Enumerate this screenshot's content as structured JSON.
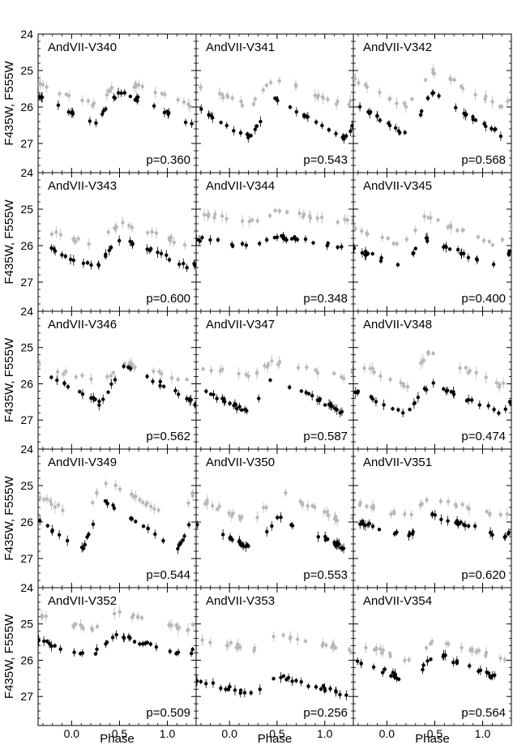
{
  "figure": {
    "ylabel": "F435W, F555W",
    "xlabel": "Phase",
    "colors": {
      "f555w": "#000000",
      "f435w": "#b8b8b8",
      "frame": "#000000"
    }
  },
  "chart_data": {
    "type": "scatter",
    "xlim": [
      -0.35,
      1.3
    ],
    "ylim_inverted": [
      27.8,
      24.0
    ],
    "yticks": [
      24,
      25,
      26,
      27
    ],
    "xticks": [
      "0.0",
      "0.5",
      "1.0"
    ],
    "grid": false,
    "series_note": "Light curves; black filled points = F555W, grey points = F435W",
    "panels": [
      {
        "name": "AndVII-V340",
        "period_label": "p=0.360",
        "period": 0.36,
        "f555w_mean": 26.0,
        "f555w_amp": 0.9,
        "f555w_max_phase": 0.5,
        "f435w_mean": 25.6,
        "f435w_amp": 0.7
      },
      {
        "name": "AndVII-V341",
        "period_label": "p=0.543",
        "period": 0.543,
        "f555w_mean": 26.3,
        "f555w_amp": 1.1,
        "f555w_max_phase": 0.47,
        "f435w_mean": 25.6,
        "f435w_amp": 0.8
      },
      {
        "name": "AndVII-V342",
        "period_label": "p=0.568",
        "period": 0.568,
        "f555w_mean": 26.2,
        "f555w_amp": 1.2,
        "f555w_max_phase": 0.47,
        "f435w_mean": 25.5,
        "f435w_amp": 1.0
      },
      {
        "name": "AndVII-V343",
        "period_label": "p=0.600",
        "period": 0.6,
        "f555w_mean": 26.2,
        "f555w_amp": 0.8,
        "f555w_max_phase": 0.5,
        "f435w_mean": 25.7,
        "f435w_amp": 0.6
      },
      {
        "name": "AndVII-V344",
        "period_label": "p=0.348",
        "period": 0.348,
        "f555w_mean": 25.9,
        "f555w_amp": 0.3,
        "f555w_max_phase": 0.5,
        "f435w_mean": 25.2,
        "f435w_amp": 0.3
      },
      {
        "name": "AndVII-V345",
        "period_label": "p=0.400",
        "period": 0.4,
        "f555w_mean": 26.2,
        "f555w_amp": 0.8,
        "f555w_max_phase": 0.4,
        "f435w_mean": 25.6,
        "f435w_amp": 0.8
      },
      {
        "name": "AndVII-V346",
        "period_label": "p=0.562",
        "period": 0.562,
        "f555w_mean": 26.0,
        "f555w_amp": 1.1,
        "f555w_max_phase": 0.55,
        "f435w_mean": 25.7,
        "f435w_amp": 0.5
      },
      {
        "name": "AndVII-V347",
        "period_label": "p=0.587",
        "period": 0.587,
        "f555w_mean": 26.3,
        "f555w_amp": 1.0,
        "f555w_max_phase": 0.45,
        "f435w_mean": 25.6,
        "f435w_amp": 0.4
      },
      {
        "name": "AndVII-V348",
        "period_label": "p=0.474",
        "period": 0.474,
        "f555w_mean": 26.4,
        "f555w_amp": 0.8,
        "f555w_max_phase": 0.45,
        "f435w_mean": 25.6,
        "f435w_amp": 1.0
      },
      {
        "name": "AndVII-V349",
        "period_label": "p=0.544",
        "period": 0.544,
        "f555w_mean": 26.1,
        "f555w_amp": 1.4,
        "f555w_max_phase": 0.35,
        "f435w_mean": 25.4,
        "f435w_amp": 1.0
      },
      {
        "name": "AndVII-V350",
        "period_label": "p=0.553",
        "period": 0.553,
        "f555w_mean": 26.3,
        "f555w_amp": 0.9,
        "f555w_max_phase": 0.5,
        "f435w_mean": 25.6,
        "f435w_amp": 0.9
      },
      {
        "name": "AndVII-V351",
        "period_label": "p=0.620",
        "period": 0.62,
        "f555w_mean": 26.1,
        "f555w_amp": 0.6,
        "f555w_max_phase": 0.47,
        "f435w_mean": 25.6,
        "f435w_amp": 0.5
      },
      {
        "name": "AndVII-V352",
        "period_label": "p=0.509",
        "period": 0.509,
        "f555w_mean": 25.6,
        "f555w_amp": 0.6,
        "f555w_max_phase": 0.45,
        "f435w_mean": 24.9,
        "f435w_amp": 0.5
      },
      {
        "name": "AndVII-V353",
        "period_label": "p=0.256",
        "period": 0.256,
        "f555w_mean": 26.7,
        "f555w_amp": 0.5,
        "f555w_max_phase": 0.5,
        "f435w_mean": 25.5,
        "f435w_amp": 0.4
      },
      {
        "name": "AndVII-V354",
        "period_label": "p=0.564",
        "period": 0.564,
        "f555w_mean": 26.2,
        "f555w_amp": 0.8,
        "f555w_max_phase": 0.5,
        "f435w_mean": 25.7,
        "f435w_amp": 0.6
      }
    ]
  }
}
